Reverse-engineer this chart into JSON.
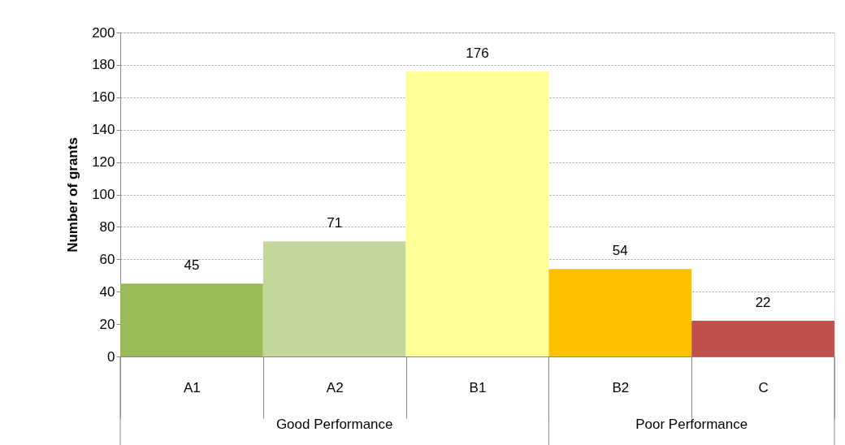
{
  "chart_data": {
    "type": "bar",
    "ylabel": "Number of grants",
    "categories": [
      "A1",
      "A2",
      "B1",
      "B2",
      "C"
    ],
    "values": [
      45,
      71,
      176,
      54,
      22
    ],
    "colors": [
      "#9bbb59",
      "#c4d79b",
      "#ffff99",
      "#ffc000",
      "#c0504d"
    ],
    "ylim": [
      0,
      200
    ],
    "yticks": [
      0,
      20,
      40,
      60,
      80,
      100,
      120,
      140,
      160,
      180,
      200
    ],
    "grid": "y",
    "data_labels": true,
    "legend": false,
    "annotations": [
      "Good Performance",
      "Poor Performance"
    ]
  }
}
